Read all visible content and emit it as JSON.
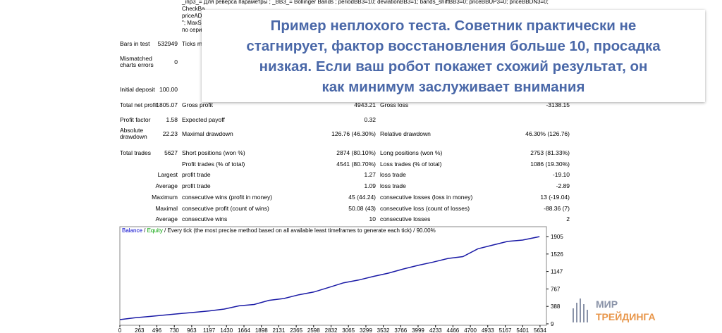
{
  "params": [
    "_inp3_= Для реверса параметры ; _BB3_= Bollinger Bands ; periodBB3=10; deviationBB3=1; bands_shiftBB3=0; priceBBUP3=0; priceBBDN3=0;",
    "CheckBa",
    "priceAD",
    "\"; MaxS",
    "по сери"
  ],
  "callout": [
    "Пример неплохого теста. Советник практически не",
    "стагнирует, фактор восстановления больше 10, просадка",
    "низкая. Если ваш робот покажет схожий результат, он",
    "как минимум заслуживает внимания"
  ],
  "table": {
    "rows": [
      [
        "Bars in test",
        "532949",
        "Ticks m",
        null,
        null,
        null
      ],
      [
        "Mismatched charts errors",
        "0",
        null,
        null,
        null,
        null
      ],
      [
        "Initial deposit",
        "100.00",
        null,
        null,
        null,
        null
      ],
      [
        "Total net profit",
        "1805.07",
        "Gross profit",
        "4943.21",
        "Gross loss",
        "-3138.15"
      ],
      [
        "Profit factor",
        "1.58",
        "Expected payoff",
        "0.32",
        null,
        null
      ],
      [
        "Absolute drawdown",
        "22.23",
        "Maximal drawdown",
        "126.76 (46.30%)",
        "Relative drawdown",
        "46.30% (126.76)"
      ],
      [
        "Total trades",
        "5627",
        "Short positions (won %)",
        "2874 (80.10%)",
        "Long positions (won %)",
        "2753 (81.33%)"
      ],
      [
        null,
        null,
        "Profit trades (% of total)",
        "4541 (80.70%)",
        "Loss trades (% of total)",
        "1086 (19.30%)"
      ],
      [
        null,
        "Largest",
        "profit trade",
        "1.27",
        "loss trade",
        "-19.10"
      ],
      [
        null,
        "Average",
        "profit trade",
        "1.09",
        "loss trade",
        "-2.89"
      ],
      [
        null,
        "Maximum",
        "consecutive wins (profit in money)",
        "45 (44.24)",
        "consecutive losses (loss in money)",
        "13 (-19.04)"
      ],
      [
        null,
        "Maximal",
        "consecutive profit (count of wins)",
        "50.08 (43)",
        "consecutive loss (count of losses)",
        "-88.36 (7)"
      ],
      [
        null,
        "Average",
        "consecutive wins",
        "10",
        "consecutive losses",
        "2"
      ]
    ]
  },
  "graph": {
    "type": "line",
    "legend": [
      "Balance",
      "Equity"
    ],
    "legend_colors": [
      "#0000cc",
      "#00a000"
    ],
    "mode_text": "Every tick (the most precise method based on all available least timeframes to generate each tick)",
    "quality": "90.00%",
    "color": "#1a1aa6",
    "x": [
      0,
      200,
      400,
      600,
      800,
      1000,
      1200,
      1400,
      1600,
      1800,
      2000,
      2200,
      2400,
      2600,
      2800,
      3000,
      3200,
      3400,
      3600,
      3800,
      4000,
      4200,
      4400,
      4600,
      4800,
      5000,
      5200,
      5400,
      5627
    ],
    "values": [
      100,
      140,
      170,
      200,
      230,
      260,
      290,
      330,
      400,
      430,
      520,
      560,
      640,
      700,
      800,
      900,
      960,
      1040,
      1110,
      1200,
      1280,
      1350,
      1430,
      1470,
      1640,
      1720,
      1800,
      1830,
      1905
    ],
    "xlim": [
      0,
      5720
    ],
    "ylim": [
      -22,
      2120
    ],
    "xticks": [
      0,
      263,
      496,
      730,
      963,
      1197,
      1430,
      1664,
      1898,
      2131,
      2365,
      2598,
      2832,
      3065,
      3299,
      3532,
      3766,
      3999,
      4233,
      4466,
      4700,
      4933,
      5167,
      5401,
      5634
    ],
    "yticks": [
      9,
      388,
      767,
      1147,
      1526,
      1905
    ]
  },
  "logo": [
    "МИР",
    "ТРЕЙДИНГА"
  ]
}
